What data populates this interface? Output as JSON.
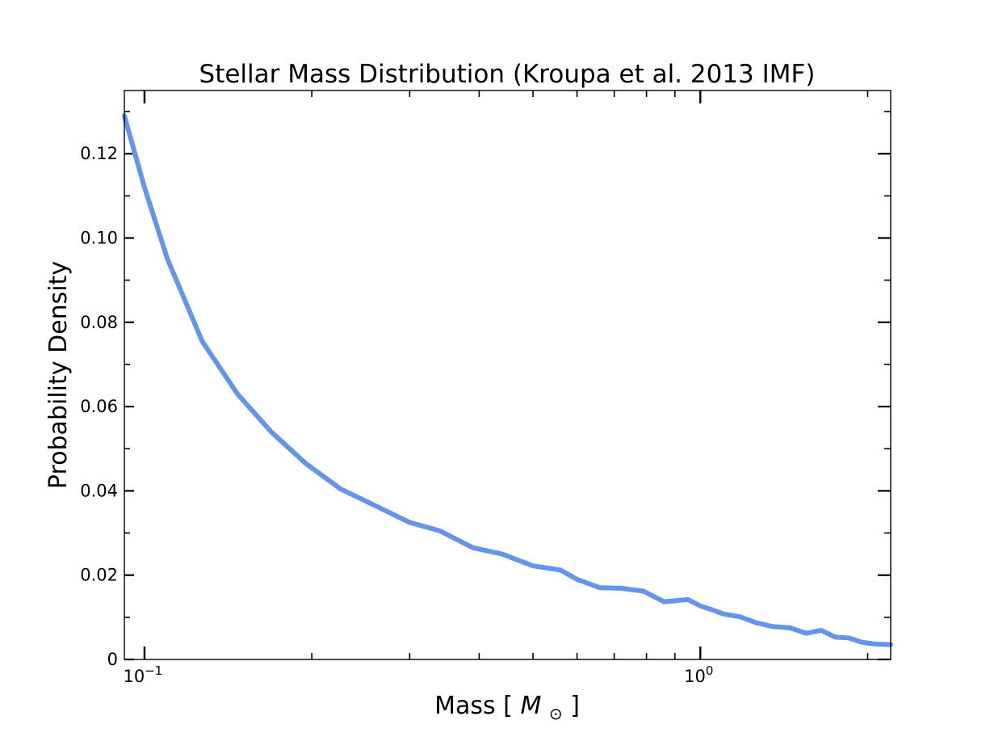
{
  "chart_data": {
    "type": "line",
    "title": "Stellar Mass Distribution (Kroupa et al. 2013 IMF)",
    "xlabel": "Mass",
    "xlabel_unit_symbol": "M",
    "xlabel_unit_subscript": "⊙",
    "ylabel": "Probability Density",
    "xscale": "log",
    "xlim": [
      0.092,
      2.2
    ],
    "ylim": [
      0,
      0.135
    ],
    "y_ticks": [
      0,
      0.02,
      0.04,
      0.06,
      0.08,
      0.1,
      0.12
    ],
    "y_tick_labels": [
      "0",
      "0.02",
      "0.04",
      "0.06",
      "0.08",
      "0.10",
      "0.12"
    ],
    "x_major_ticks": [
      {
        "value": 0.1,
        "base": "10",
        "exponent": "−1"
      },
      {
        "value": 1.0,
        "base": "10",
        "exponent": "0"
      }
    ],
    "x_minor_ticks": [
      0.2,
      0.3,
      0.4,
      0.5,
      0.6,
      0.7,
      0.8,
      0.9,
      2.0
    ],
    "grid": false,
    "line_color": "#6495ED",
    "series": [
      {
        "x": [
          0.092,
          0.1,
          0.11,
          0.127,
          0.147,
          0.169,
          0.195,
          0.225,
          0.26,
          0.3,
          0.34,
          0.39,
          0.44,
          0.5,
          0.56,
          0.6,
          0.66,
          0.72,
          0.79,
          0.86,
          0.95,
          1.0,
          1.05,
          1.1,
          1.18,
          1.26,
          1.35,
          1.45,
          1.55,
          1.65,
          1.75,
          1.85,
          1.95,
          2.05,
          2.2
        ],
        "y": [
          0.129,
          0.112,
          0.095,
          0.0755,
          0.063,
          0.054,
          0.0465,
          0.0405,
          0.0365,
          0.0325,
          0.0305,
          0.0265,
          0.025,
          0.0222,
          0.0212,
          0.019,
          0.017,
          0.0169,
          0.0162,
          0.0137,
          0.0142,
          0.0127,
          0.0118,
          0.0108,
          0.0101,
          0.0087,
          0.0078,
          0.0075,
          0.0062,
          0.0069,
          0.0053,
          0.0051,
          0.0041,
          0.0037,
          0.0035
        ]
      }
    ]
  }
}
